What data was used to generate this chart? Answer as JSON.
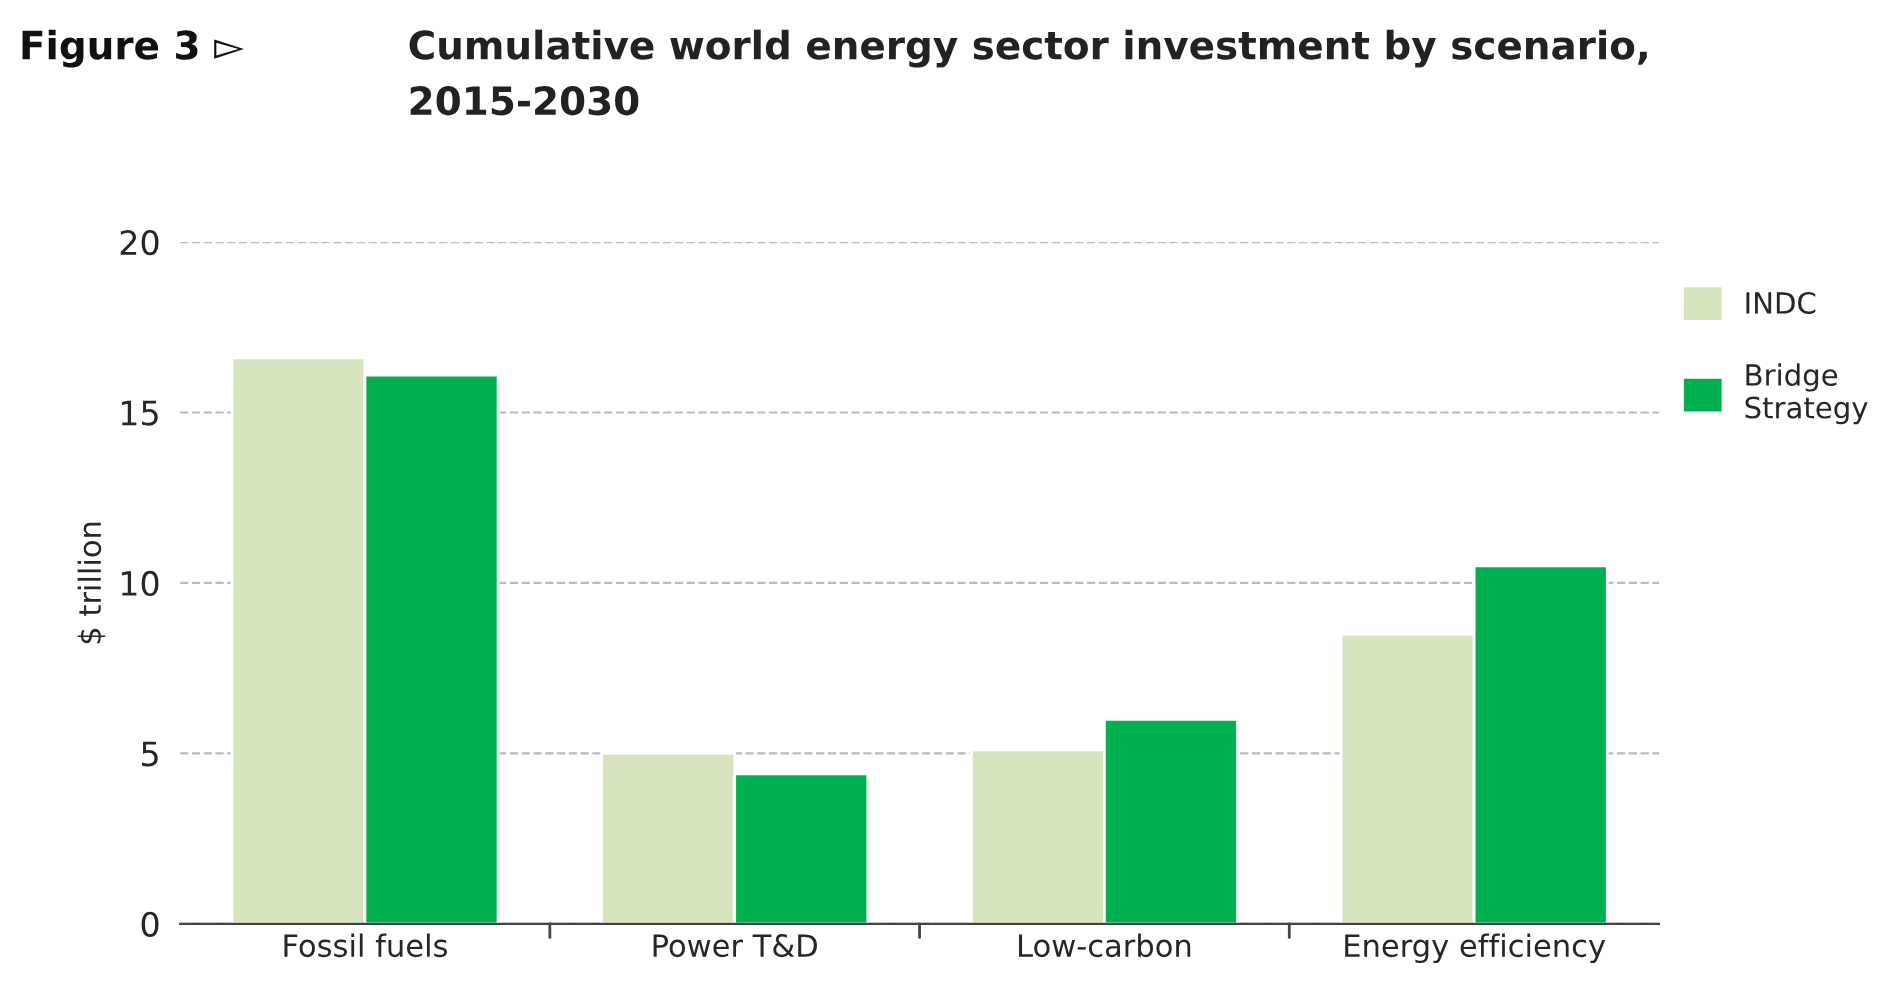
{
  "chart_data": {
    "type": "bar",
    "title": "Cumulative world energy sector investment by scenario,\n2015-2030",
    "annotations": [
      "Figure 3 ▻"
    ],
    "ylabel": "$ trillion",
    "categories": [
      "Fossil fuels",
      "Power T&D",
      "Low-carbon",
      "Energy efficiency"
    ],
    "series": [
      {
        "name": "INDC",
        "color": "#d7e4c0",
        "values": [
          16.6,
          5.0,
          5.1,
          8.5
        ]
      },
      {
        "name": "Bridge\nStrategy",
        "color": "#00b050",
        "values": [
          16.1,
          4.4,
          6.0,
          10.5
        ]
      }
    ],
    "ylim": [
      0,
      20
    ],
    "yticks": [
      0,
      5,
      10,
      15,
      20
    ],
    "grid": "y",
    "legend": "right"
  }
}
